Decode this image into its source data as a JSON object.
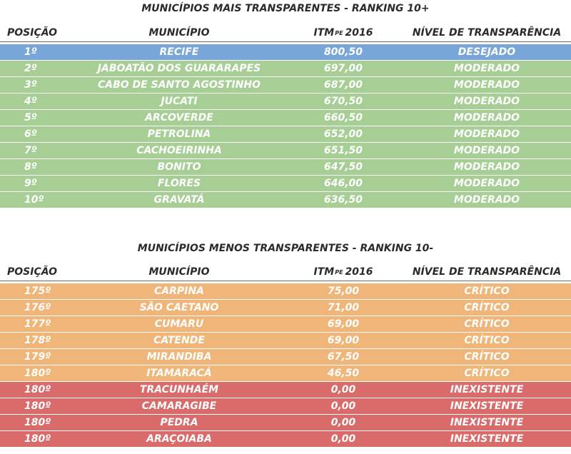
{
  "colors": {
    "desejado": "#79a6d9",
    "moderado": "#a7cf95",
    "critico": "#f0b679",
    "inexistente": "#d96b6b"
  },
  "top": {
    "title": "MUNICÍPIOS MAIS TRANSPARENTES - RANKING 10+",
    "headers": {
      "posicao": "POSIÇÃO",
      "municipio": "MUNICÍPIO",
      "itm": "ITM",
      "itm_sub": "PE",
      "itm_year": "2016",
      "nivel": "NÍVEL DE TRANSPARÊNCIA"
    },
    "rows": [
      {
        "pos": "1º",
        "municipio": "RECIFE",
        "itm": "800,50",
        "nivel": "DESEJADO",
        "level": "desejado"
      },
      {
        "pos": "2º",
        "municipio": "JABOATÃO DOS  GUARARAPES",
        "itm": "697,00",
        "nivel": "MODERADO",
        "level": "moderado"
      },
      {
        "pos": "3º",
        "municipio": "CABO DE SANTO AGOSTINHO",
        "itm": "687,00",
        "nivel": "MODERADO",
        "level": "moderado"
      },
      {
        "pos": "4º",
        "municipio": "JUCATI",
        "itm": "670,50",
        "nivel": "MODERADO",
        "level": "moderado"
      },
      {
        "pos": "5º",
        "municipio": "ARCOVERDE",
        "itm": "660,50",
        "nivel": "MODERADO",
        "level": "moderado"
      },
      {
        "pos": "6º",
        "municipio": "PETROLINA",
        "itm": "652,00",
        "nivel": "MODERADO",
        "level": "moderado"
      },
      {
        "pos": "7º",
        "municipio": "CACHOEIRINHA",
        "itm": "651,50",
        "nivel": "MODERADO",
        "level": "moderado"
      },
      {
        "pos": "8º",
        "municipio": "BONITO",
        "itm": "647,50",
        "nivel": "MODERADO",
        "level": "moderado"
      },
      {
        "pos": "9º",
        "municipio": "FLORES",
        "itm": "646,00",
        "nivel": "MODERADO",
        "level": "moderado"
      },
      {
        "pos": "10º",
        "municipio": "GRAVATÁ",
        "itm": "636,50",
        "nivel": "MODERADO",
        "level": "moderado"
      }
    ]
  },
  "bottom": {
    "title": "MUNICÍPIOS MENOS TRANSPARENTES - RANKING 10-",
    "headers": {
      "posicao": "POSIÇÃO",
      "municipio": "MUNICÍPIO",
      "itm": "ITM",
      "itm_sub": "PE",
      "itm_year": "2016",
      "nivel": "NÍVEL DE TRANSPARÊNCIA"
    },
    "rows": [
      {
        "pos": "175º",
        "municipio": "CARPINA",
        "itm": "75,00",
        "nivel": "CRÍTICO",
        "level": "critico"
      },
      {
        "pos": "176º",
        "municipio": "SÃO CAETANO",
        "itm": "71,00",
        "nivel": "CRÍTICO",
        "level": "critico"
      },
      {
        "pos": "177º",
        "municipio": "CUMARU",
        "itm": "69,00",
        "nivel": "CRÍTICO",
        "level": "critico"
      },
      {
        "pos": "178º",
        "municipio": "CATENDE",
        "itm": "69,00",
        "nivel": "CRÍTICO",
        "level": "critico"
      },
      {
        "pos": "179º",
        "municipio": "MIRANDIBA",
        "itm": "67,50",
        "nivel": "CRÍTICO",
        "level": "critico"
      },
      {
        "pos": "180º",
        "municipio": "ITAMARACÁ",
        "itm": "46,50",
        "nivel": "CRÍTICO",
        "level": "critico"
      },
      {
        "pos": "180º",
        "municipio": "TRACUNHAÉM",
        "itm": "0,00",
        "nivel": "INEXISTENTE",
        "level": "inexistente"
      },
      {
        "pos": "180º",
        "municipio": "CAMARAGIBE",
        "itm": "0,00",
        "nivel": "INEXISTENTE",
        "level": "inexistente"
      },
      {
        "pos": "180º",
        "municipio": "PEDRA",
        "itm": "0,00",
        "nivel": "INEXISTENTE",
        "level": "inexistente"
      },
      {
        "pos": "180º",
        "municipio": "ARAÇOIABA",
        "itm": "0,00",
        "nivel": "INEXISTENTE",
        "level": "inexistente"
      }
    ]
  }
}
